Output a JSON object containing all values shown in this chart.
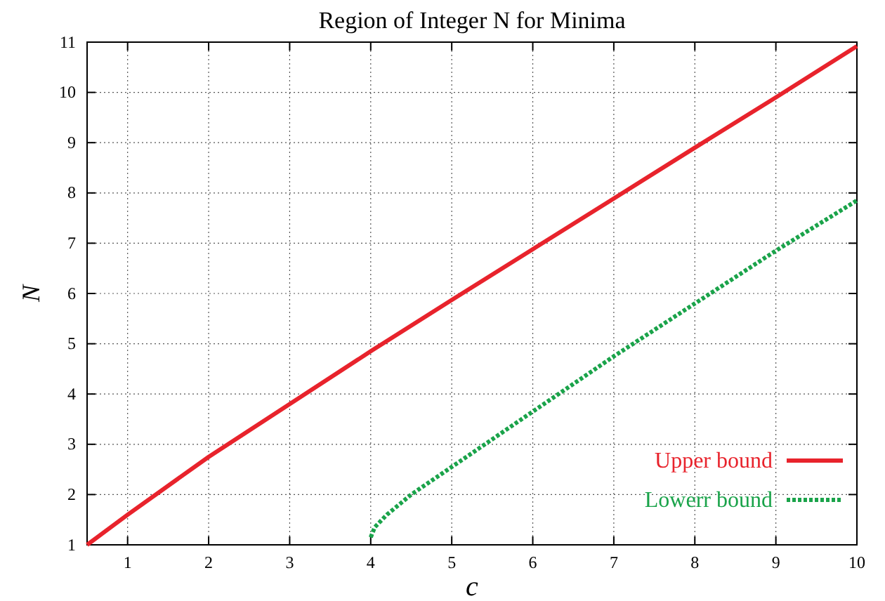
{
  "chart_data": {
    "type": "line",
    "title": "Region of Integer N for Minima",
    "xlabel": "c",
    "ylabel": "N",
    "xlim": [
      0.5,
      10
    ],
    "xticks": [
      1,
      2,
      3,
      4,
      5,
      6,
      7,
      8,
      9,
      10
    ],
    "ylim": [
      1,
      11
    ],
    "yticks": [
      1,
      2,
      3,
      4,
      5,
      6,
      7,
      8,
      9,
      10,
      11
    ],
    "grid": true,
    "legend": "bottom right",
    "series": [
      {
        "name": "Upper bound",
        "color": "#e8232c",
        "line_style": "solid",
        "x": [
          0.5,
          1,
          2,
          3,
          4,
          5,
          6,
          7,
          8,
          9,
          10
        ],
        "values": [
          1,
          1.6,
          2.75,
          3.8,
          4.85,
          5.87,
          6.88,
          7.89,
          8.9,
          9.9,
          10.92
        ]
      },
      {
        "name": "Lowerr bound",
        "color": "#1aa34a",
        "line_style": "dotted",
        "x": [
          4.0,
          4.05,
          4.2,
          4.5,
          5,
          6,
          7,
          8,
          9,
          10
        ],
        "values": [
          1.15,
          1.35,
          1.6,
          2.0,
          2.55,
          3.65,
          4.75,
          5.8,
          6.85,
          7.85
        ]
      }
    ]
  }
}
